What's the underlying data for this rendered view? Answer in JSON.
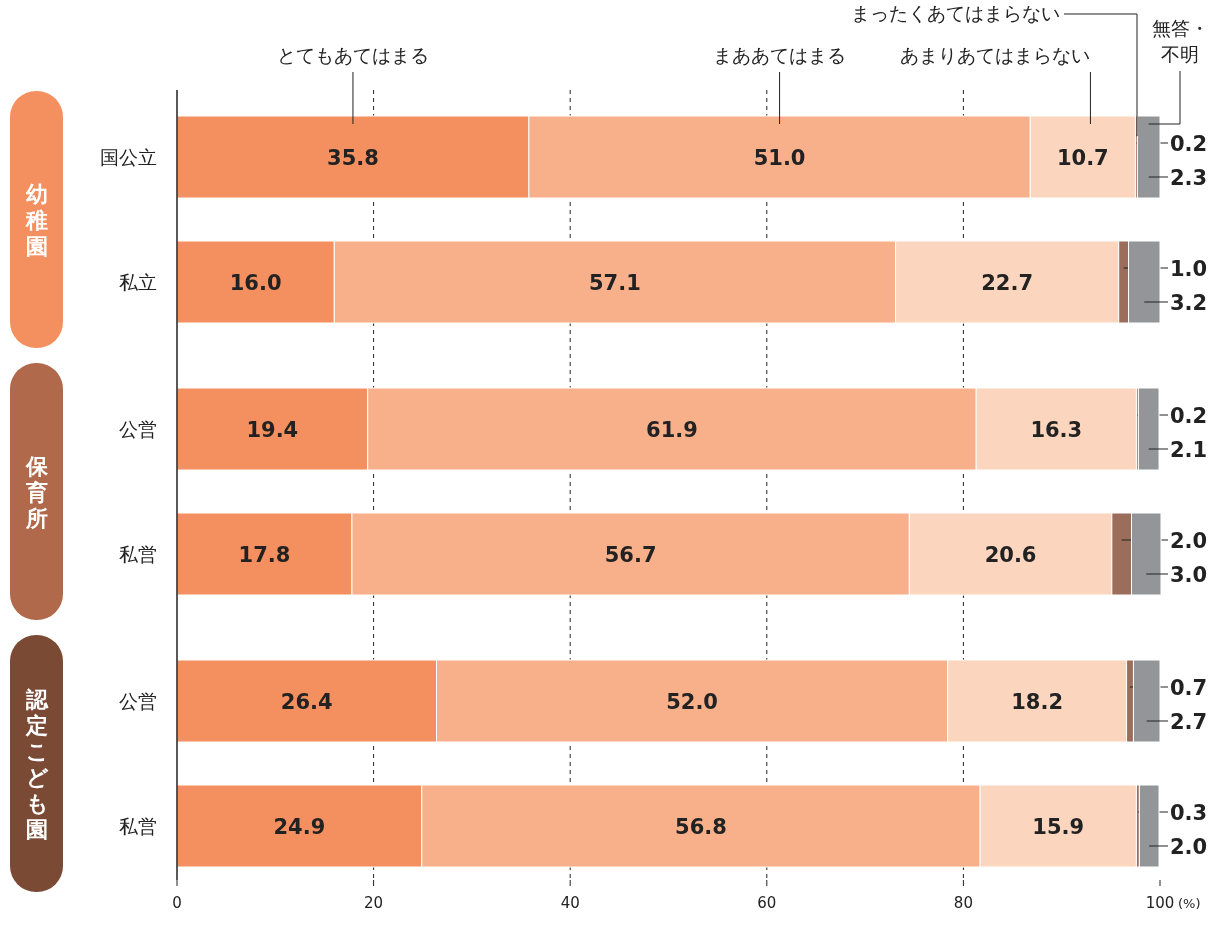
{
  "chart_data": {
    "type": "bar",
    "orientation": "horizontal",
    "stacked": true,
    "categories": [
      "国公立",
      "私立",
      "公営",
      "私営",
      "公営",
      "私営"
    ],
    "series": [
      {
        "name": "とてもあてはまる",
        "color": "#f4905f",
        "values": [
          35.8,
          16.0,
          19.4,
          17.8,
          26.4,
          24.9
        ],
        "value_labels": [
          "35.8",
          "16.0",
          "19.4",
          "17.8",
          "26.4",
          "24.9"
        ]
      },
      {
        "name": "まああてはまる",
        "color": "#f8b08a",
        "values": [
          51.0,
          57.1,
          61.9,
          56.7,
          52.0,
          56.8
        ],
        "value_labels": [
          "51.0",
          "57.1",
          "61.9",
          "56.7",
          "52.0",
          "56.8"
        ]
      },
      {
        "name": "あまりあてはまらない",
        "color": "#fbd5bd",
        "values": [
          10.7,
          22.7,
          16.3,
          20.6,
          18.2,
          15.9
        ],
        "value_labels": [
          "10.7",
          "22.7",
          "16.3",
          "20.6",
          "18.2",
          "15.9"
        ]
      },
      {
        "name": "まったくあてはまらない",
        "color": "#9c6d5b",
        "values": [
          0.2,
          1.0,
          0.2,
          2.0,
          0.7,
          0.3
        ],
        "value_labels": [
          "0.2",
          "1.0",
          "0.2",
          "2.0",
          "0.7",
          "0.3"
        ]
      },
      {
        "name": "無答・不明",
        "color": "#939598",
        "values": [
          2.3,
          3.2,
          2.1,
          3.0,
          2.7,
          2.0
        ],
        "value_labels": [
          "2.3",
          "3.2",
          "2.1",
          "3.0",
          "2.7",
          "2.0"
        ]
      }
    ],
    "xlim": [
      0,
      100
    ],
    "xticks": [
      0,
      20,
      40,
      60,
      80,
      100
    ],
    "xlabel": "(%)",
    "grid": "x",
    "legend": "top",
    "annotations": [
      "幼稚園",
      "保育所",
      "認定こども園"
    ]
  }
}
